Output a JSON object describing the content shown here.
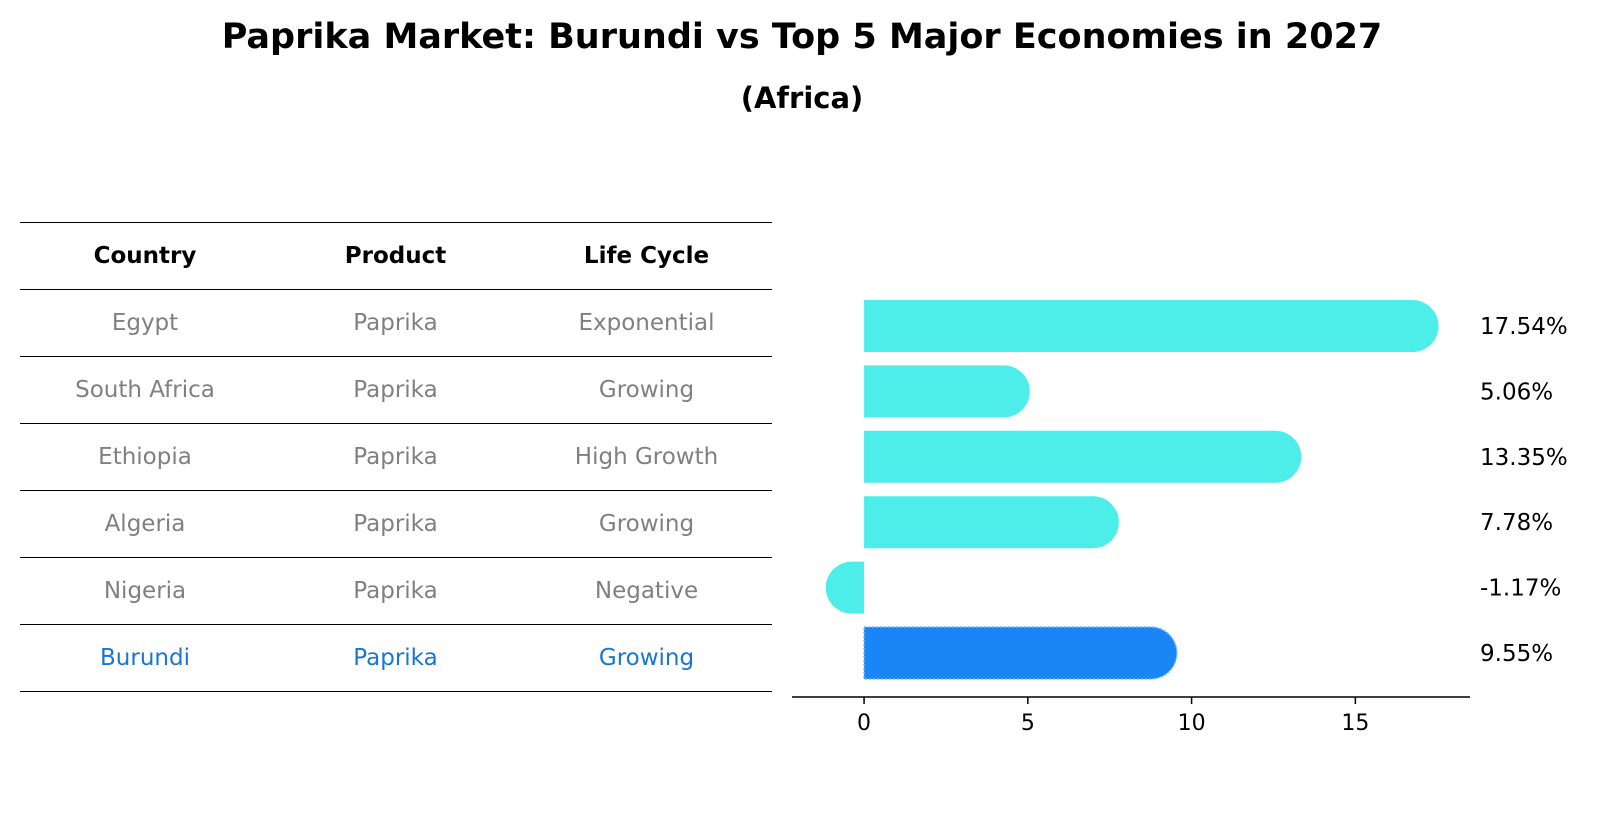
{
  "title": "Paprika Market: Burundi vs Top 5 Major Economies in 2027",
  "subtitle": "(Africa)",
  "table": {
    "headers": [
      "Country",
      "Product",
      "Life Cycle"
    ],
    "rows": [
      {
        "country": "Egypt",
        "product": "Paprika",
        "life_cycle": "Exponential"
      },
      {
        "country": "South Africa",
        "product": "Paprika",
        "life_cycle": "Growing"
      },
      {
        "country": "Ethiopia",
        "product": "Paprika",
        "life_cycle": "High Growth"
      },
      {
        "country": "Algeria",
        "product": "Paprika",
        "life_cycle": "Growing"
      },
      {
        "country": "Nigeria",
        "product": "Paprika",
        "life_cycle": "Negative"
      },
      {
        "country": "Burundi",
        "product": "Paprika",
        "life_cycle": "Growing"
      }
    ]
  },
  "chart_data": {
    "type": "bar",
    "orientation": "horizontal",
    "categories": [
      "Egypt",
      "South Africa",
      "Ethiopia",
      "Algeria",
      "Nigeria",
      "Burundi"
    ],
    "values": [
      17.54,
      5.06,
      13.35,
      7.78,
      -1.17,
      9.55
    ],
    "value_labels": [
      "17.54%",
      "5.06%",
      "13.35%",
      "7.78%",
      "-1.17%",
      "9.55%"
    ],
    "highlight": "Burundi",
    "xlim": [
      -2.2,
      18.5
    ],
    "xticks": [
      0,
      5,
      10,
      15
    ],
    "xtick_labels": [
      "0",
      "5",
      "10",
      "15"
    ],
    "colors": {
      "default": "#4deeea",
      "highlight": "#1a86f5"
    }
  }
}
